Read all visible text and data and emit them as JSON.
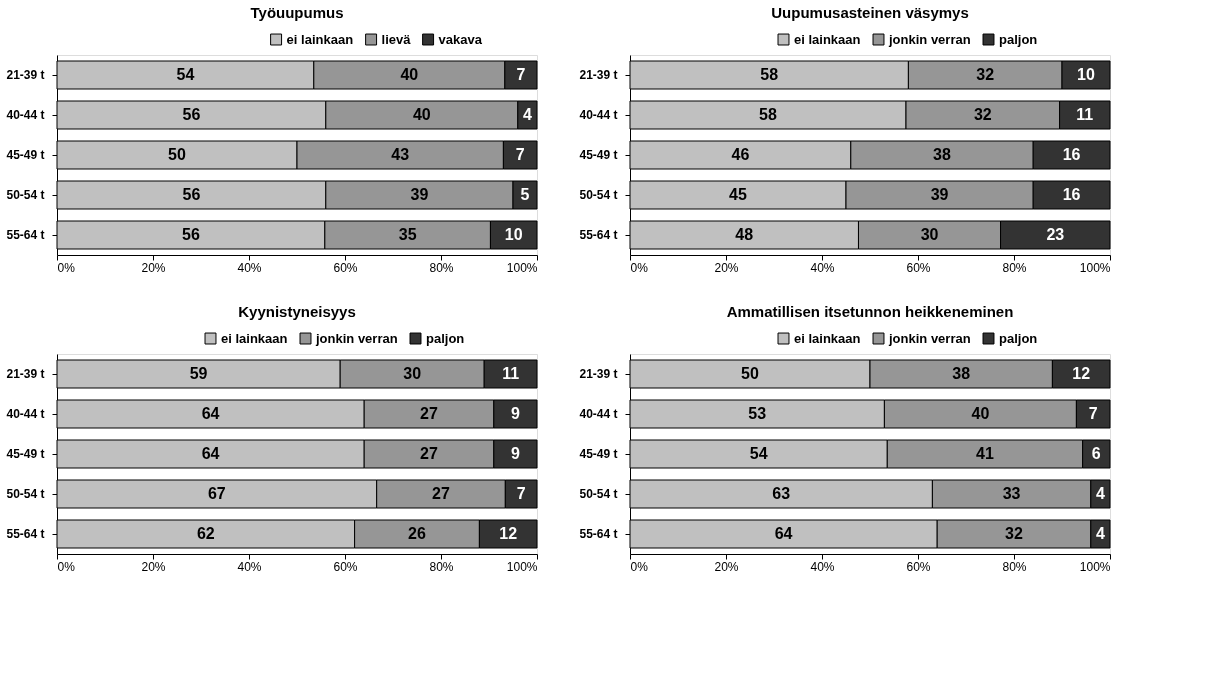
{
  "chart_data": [
    {
      "type": "bar",
      "title": "Työuupumus",
      "orientation": "horizontal",
      "stacked": true,
      "legend": "top right",
      "grid": false,
      "categories": [
        "21-39 t",
        "40-44 t",
        "45-49 t",
        "50-54 t",
        "55-64 t"
      ],
      "series": [
        {
          "name": "ei lainkaan",
          "color": "#c0c0c0",
          "values": [
            53.5,
            56,
            50,
            56,
            55.8
          ],
          "value_labels": [
            "54",
            "56",
            "50",
            "56",
            "56"
          ]
        },
        {
          "name": "lievä",
          "color": "#969696",
          "values": [
            39.8,
            40,
            43,
            39,
            34.5
          ],
          "value_labels": [
            "40",
            "40",
            "43",
            "39",
            "35"
          ]
        },
        {
          "name": "vakava",
          "color": "#333333",
          "values": [
            6.7,
            4,
            7,
            5,
            9.7
          ],
          "value_labels": [
            "7",
            "4",
            "7",
            "5",
            "10"
          ]
        }
      ],
      "xlim": [
        0,
        100
      ],
      "xticks": [
        {
          "value": 0,
          "label": "0%"
        },
        {
          "value": 20,
          "label": "20%"
        },
        {
          "value": 40,
          "label": "40%"
        },
        {
          "value": 60,
          "label": "60%"
        },
        {
          "value": 80,
          "label": "80%"
        },
        {
          "value": 100,
          "label": "100%"
        }
      ]
    },
    {
      "type": "bar",
      "title": "Uupumusasteinen väsymys",
      "orientation": "horizontal",
      "stacked": true,
      "legend": "top right",
      "grid": false,
      "categories": [
        "21-39 t",
        "40-44 t",
        "45-49 t",
        "50-54 t",
        "55-64 t"
      ],
      "series": [
        {
          "name": "ei lainkaan",
          "color": "#c0c0c0",
          "values": [
            58,
            57.5,
            46,
            45,
            47.6
          ],
          "value_labels": [
            "58",
            "58",
            "46",
            "45",
            "48"
          ]
        },
        {
          "name": "jonkin verran",
          "color": "#969696",
          "values": [
            32,
            32,
            38,
            39,
            29.6
          ],
          "value_labels": [
            "32",
            "32",
            "38",
            "39",
            "30"
          ]
        },
        {
          "name": "paljon",
          "color": "#333333",
          "values": [
            10,
            10.5,
            16,
            16,
            22.8
          ],
          "value_labels": [
            "10",
            "11",
            "16",
            "16",
            "23"
          ]
        }
      ],
      "xlim": [
        0,
        100
      ],
      "xticks": [
        {
          "value": 0,
          "label": "0%"
        },
        {
          "value": 20,
          "label": "20%"
        },
        {
          "value": 40,
          "label": "40%"
        },
        {
          "value": 60,
          "label": "60%"
        },
        {
          "value": 80,
          "label": "80%"
        },
        {
          "value": 100,
          "label": "100%"
        }
      ]
    },
    {
      "type": "bar",
      "title": "Kyynistyneisyys",
      "orientation": "horizontal",
      "stacked": true,
      "legend": "top right",
      "grid": false,
      "categories": [
        "21-39 t",
        "40-44 t",
        "45-49 t",
        "50-54 t",
        "55-64 t"
      ],
      "series": [
        {
          "name": "ei lainkaan",
          "color": "#c0c0c0",
          "values": [
            59,
            64,
            64,
            66.6,
            62
          ],
          "value_labels": [
            "59",
            "64",
            "64",
            "67",
            "62"
          ]
        },
        {
          "name": "jonkin verran",
          "color": "#969696",
          "values": [
            30,
            27,
            27,
            26.8,
            26
          ],
          "value_labels": [
            "30",
            "27",
            "27",
            "27",
            "26"
          ]
        },
        {
          "name": "paljon",
          "color": "#333333",
          "values": [
            11,
            9,
            9,
            6.6,
            12
          ],
          "value_labels": [
            "11",
            "9",
            "9",
            "7",
            "12"
          ]
        }
      ],
      "xlim": [
        0,
        100
      ],
      "xticks": [
        {
          "value": 0,
          "label": "0%"
        },
        {
          "value": 20,
          "label": "20%"
        },
        {
          "value": 40,
          "label": "40%"
        },
        {
          "value": 60,
          "label": "60%"
        },
        {
          "value": 80,
          "label": "80%"
        },
        {
          "value": 100,
          "label": "100%"
        }
      ]
    },
    {
      "type": "bar",
      "title": "Ammatillisen itsetunnon heikkeneminen",
      "orientation": "horizontal",
      "stacked": true,
      "legend": "top right",
      "grid": false,
      "categories": [
        "21-39 t",
        "40-44 t",
        "45-49 t",
        "50-54 t",
        "55-64 t"
      ],
      "series": [
        {
          "name": "ei lainkaan",
          "color": "#c0c0c0",
          "values": [
            50,
            53,
            53.6,
            63,
            64
          ],
          "value_labels": [
            "50",
            "53",
            "54",
            "63",
            "64"
          ]
        },
        {
          "name": "jonkin verran",
          "color": "#969696",
          "values": [
            38,
            40,
            40.7,
            33,
            32
          ],
          "value_labels": [
            "38",
            "40",
            "41",
            "33",
            "32"
          ]
        },
        {
          "name": "paljon",
          "color": "#333333",
          "values": [
            12,
            7,
            5.7,
            4,
            4
          ],
          "value_labels": [
            "12",
            "7",
            "6",
            "4",
            "4"
          ]
        }
      ],
      "xlim": [
        0,
        100
      ],
      "xticks": [
        {
          "value": 0,
          "label": "0%"
        },
        {
          "value": 20,
          "label": "20%"
        },
        {
          "value": 40,
          "label": "40%"
        },
        {
          "value": 60,
          "label": "60%"
        },
        {
          "value": 80,
          "label": "80%"
        },
        {
          "value": 100,
          "label": "100%"
        }
      ]
    }
  ]
}
